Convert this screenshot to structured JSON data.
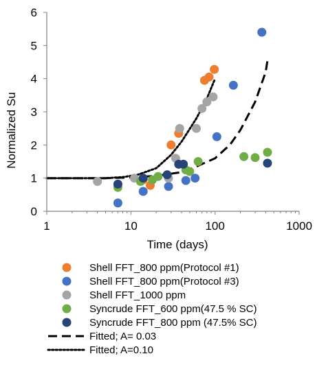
{
  "chart_data": {
    "type": "scatter",
    "xlabel": "Time (days)",
    "ylabel": "Normalized Su",
    "x_scale": "log",
    "xlim": [
      1,
      1000
    ],
    "ylim": [
      0,
      6
    ],
    "x_ticks": [
      "1",
      "10",
      "100",
      "1000"
    ],
    "y_ticks": [
      "0",
      "1",
      "2",
      "3",
      "4",
      "5",
      "6"
    ],
    "grid": false,
    "legend_position": "bottom",
    "series": [
      {
        "name": "Shell FFT_800 ppm(Protocol #1)",
        "color": "#ED7D31",
        "marker": "circle",
        "points": [
          [
            7,
            0.8
          ],
          [
            14,
            0.95
          ],
          [
            17,
            0.78
          ],
          [
            30,
            2.0
          ],
          [
            37,
            2.35
          ],
          [
            75,
            3.95
          ],
          [
            85,
            4.05
          ],
          [
            98,
            4.28
          ]
        ]
      },
      {
        "name": "Shell FFT_800 ppm(Protocol #3)",
        "color": "#4472C4",
        "marker": "circle",
        "points": [
          [
            7,
            0.25
          ],
          [
            14,
            0.6
          ],
          [
            28,
            0.75
          ],
          [
            45,
            0.93
          ],
          [
            58,
            1.0
          ],
          [
            105,
            2.25
          ],
          [
            165,
            3.8
          ],
          [
            360,
            5.4
          ]
        ]
      },
      {
        "name": "Shell FFT_1000 ppm",
        "color": "#A5A5A5",
        "marker": "circle",
        "points": [
          [
            4,
            0.9
          ],
          [
            11,
            1.0
          ],
          [
            28,
            1.0
          ],
          [
            34,
            1.6
          ],
          [
            38,
            2.5
          ],
          [
            60,
            2.5
          ],
          [
            70,
            3.1
          ],
          [
            80,
            3.3
          ],
          [
            95,
            3.45
          ]
        ]
      },
      {
        "name": "Syncrude FFT_600 ppm(47.5 % SC)",
        "color": "#70AD47",
        "marker": "circle",
        "points": [
          [
            7,
            0.72
          ],
          [
            13,
            0.9
          ],
          [
            18,
            0.95
          ],
          [
            21,
            1.05
          ],
          [
            45,
            1.25
          ],
          [
            50,
            1.2
          ],
          [
            63,
            1.5
          ],
          [
            220,
            1.65
          ],
          [
            300,
            1.62
          ],
          [
            420,
            1.78
          ]
        ]
      },
      {
        "name": "Syncrude FFT_800 ppm (47.5% SC)",
        "color": "#264478",
        "marker": "circle",
        "points": [
          [
            7,
            0.82
          ],
          [
            14,
            1.0
          ],
          [
            27,
            1.1
          ],
          [
            37,
            1.42
          ],
          [
            42,
            1.42
          ],
          [
            420,
            1.45
          ]
        ]
      }
    ],
    "fitted_curves": [
      {
        "name": "Fitted; A= 0.03",
        "style": "dashed",
        "color": "#000000",
        "points": [
          [
            1,
            1.0
          ],
          [
            5,
            1.0
          ],
          [
            10,
            1.02
          ],
          [
            20,
            1.07
          ],
          [
            40,
            1.18
          ],
          [
            60,
            1.35
          ],
          [
            100,
            1.6
          ],
          [
            150,
            2.0
          ],
          [
            200,
            2.45
          ],
          [
            300,
            3.3
          ],
          [
            400,
            4.2
          ],
          [
            420,
            4.55
          ]
        ]
      },
      {
        "name": "Fitted; A=0.10",
        "style": "dotted",
        "color": "#000000",
        "points": [
          [
            1,
            1.0
          ],
          [
            5,
            1.0
          ],
          [
            8,
            1.03
          ],
          [
            12,
            1.1
          ],
          [
            20,
            1.3
          ],
          [
            30,
            1.7
          ],
          [
            40,
            2.1
          ],
          [
            60,
            2.8
          ],
          [
            80,
            3.4
          ],
          [
            100,
            4.0
          ]
        ]
      }
    ]
  }
}
